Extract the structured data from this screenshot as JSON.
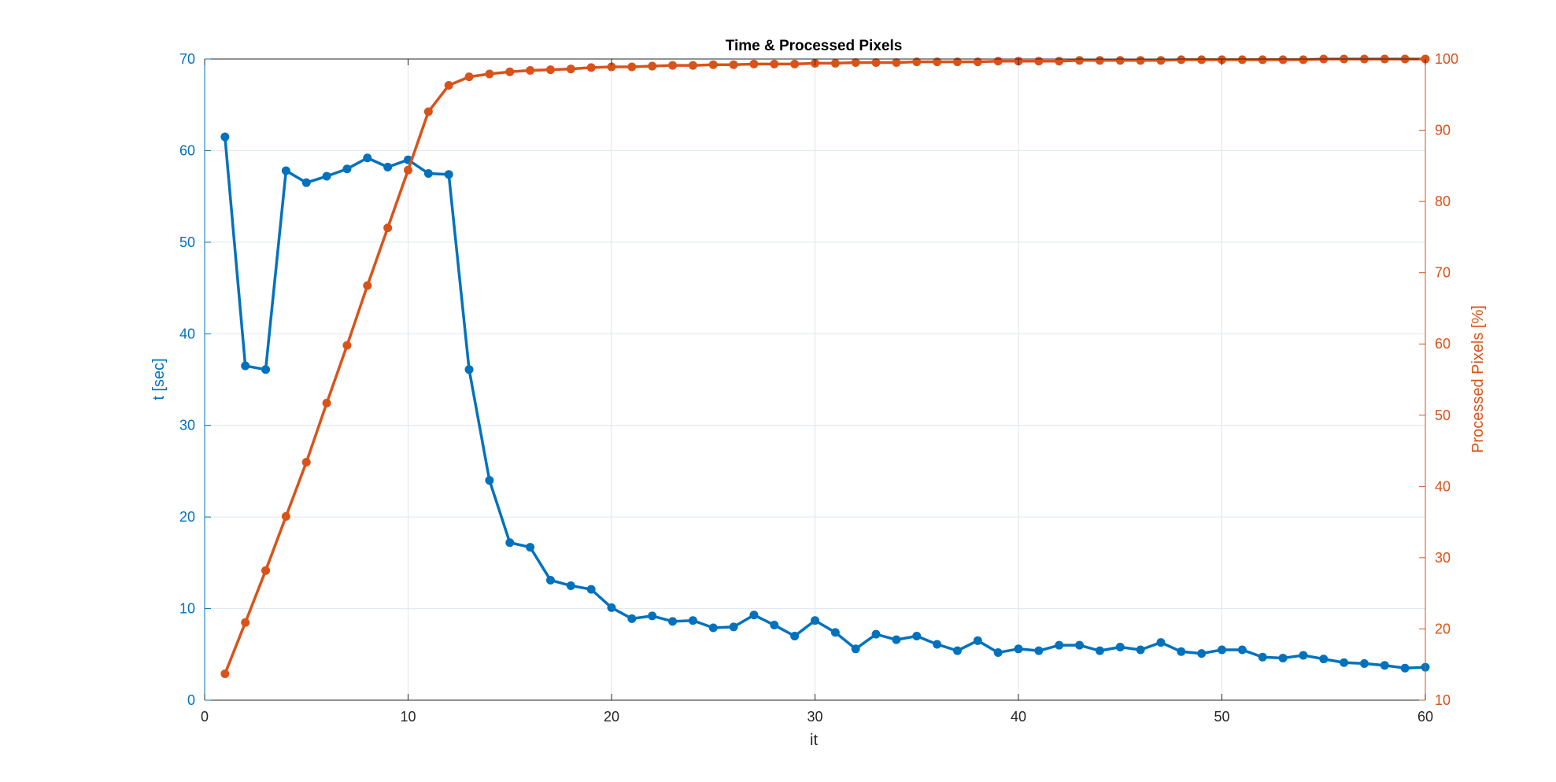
{
  "chart_data": {
    "type": "line",
    "title": "Time & Processed Pixels",
    "xlabel": "it",
    "ylabel_left": "t [sec]",
    "ylabel_right": "Processed Pixels [%]",
    "xlim": [
      0,
      60
    ],
    "ylim_left": [
      0,
      70
    ],
    "ylim_right": [
      10,
      100
    ],
    "x_ticks": [
      0,
      10,
      20,
      30,
      40,
      50,
      60
    ],
    "y_ticks_left": [
      0,
      10,
      20,
      30,
      40,
      50,
      60,
      70
    ],
    "y_ticks_right": [
      10,
      20,
      30,
      40,
      50,
      60,
      70,
      80,
      90,
      100
    ],
    "grid": true,
    "colors": {
      "left": "#0072BD",
      "right": "#D95319",
      "grid": "#dfe6ee",
      "axis": "#262626"
    },
    "x": [
      1,
      2,
      3,
      4,
      5,
      6,
      7,
      8,
      9,
      10,
      11,
      12,
      13,
      14,
      15,
      16,
      17,
      18,
      19,
      20,
      21,
      22,
      23,
      24,
      25,
      26,
      27,
      28,
      29,
      30,
      31,
      32,
      33,
      34,
      35,
      36,
      37,
      38,
      39,
      40,
      41,
      42,
      43,
      44,
      45,
      46,
      47,
      48,
      49,
      50,
      51,
      52,
      53,
      54,
      55,
      56,
      57,
      58,
      59,
      60
    ],
    "series": [
      {
        "axis": "left",
        "values": [
          61.5,
          36.5,
          36.1,
          57.8,
          56.5,
          57.2,
          58.0,
          59.2,
          58.2,
          59.0,
          57.5,
          57.4,
          36.1,
          24.0,
          17.2,
          16.7,
          13.1,
          12.5,
          12.1,
          10.1,
          8.9,
          9.2,
          8.6,
          8.7,
          7.9,
          8.0,
          9.3,
          8.2,
          7.0,
          8.7,
          7.4,
          5.6,
          7.2,
          6.6,
          7.0,
          6.1,
          5.4,
          6.5,
          5.2,
          5.6,
          5.4,
          6.0,
          6.0,
          5.4,
          5.8,
          5.5,
          6.3,
          5.3,
          5.1,
          5.5,
          5.5,
          4.7,
          4.6,
          4.9,
          4.5,
          4.1,
          4.0,
          3.8,
          3.5,
          3.6
        ]
      },
      {
        "axis": "right",
        "values": [
          13.7,
          20.9,
          28.2,
          35.8,
          43.4,
          51.7,
          59.8,
          68.2,
          76.3,
          84.4,
          92.6,
          96.3,
          97.5,
          97.9,
          98.2,
          98.4,
          98.5,
          98.6,
          98.8,
          98.9,
          98.9,
          99.0,
          99.1,
          99.1,
          99.2,
          99.2,
          99.3,
          99.3,
          99.3,
          99.4,
          99.4,
          99.5,
          99.5,
          99.5,
          99.6,
          99.6,
          99.6,
          99.6,
          99.7,
          99.7,
          99.7,
          99.7,
          99.8,
          99.8,
          99.8,
          99.8,
          99.8,
          99.9,
          99.9,
          99.9,
          99.9,
          99.9,
          99.9,
          99.9,
          100.0,
          100.0,
          100.0,
          100.0,
          100.0,
          100.0
        ]
      }
    ]
  }
}
